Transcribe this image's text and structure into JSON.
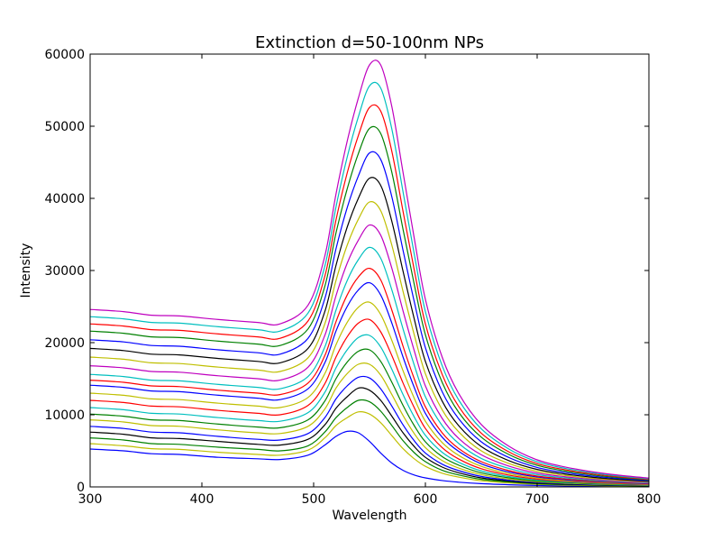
{
  "chart_data": {
    "type": "line",
    "title": "Extinction d=50-100nm NPs",
    "xlabel": "Wavelength",
    "ylabel": "Intensity",
    "xlim": [
      300,
      800
    ],
    "ylim": [
      0,
      60000
    ],
    "x_ticks": [
      300,
      400,
      500,
      600,
      700,
      800
    ],
    "y_ticks": [
      0,
      10000,
      20000,
      30000,
      40000,
      50000,
      60000
    ],
    "grid": false,
    "legend": "none",
    "x": [
      300,
      330,
      355,
      380,
      415,
      450,
      470,
      495,
      510,
      520,
      530,
      540,
      550,
      560,
      570,
      580,
      590,
      600,
      615,
      630,
      650,
      675,
      700,
      725,
      750,
      775,
      800
    ],
    "series": [
      {
        "color": "#0000ff",
        "peak_x": 530,
        "values": [
          5250,
          5000,
          4600,
          4500,
          4100,
          3900,
          3800,
          4400,
          5800,
          7000,
          7700,
          7500,
          6300,
          4700,
          3300,
          2300,
          1650,
          1250,
          880,
          650,
          450,
          300,
          200,
          140,
          100,
          70,
          50
        ]
      },
      {
        "color": "#bfbf00",
        "peak_x": 532,
        "values": [
          6000,
          5700,
          5300,
          5200,
          4800,
          4500,
          4400,
          5100,
          6800,
          8500,
          9600,
          10400,
          10100,
          8900,
          7100,
          5300,
          3900,
          2850,
          1900,
          1350,
          850,
          550,
          350,
          250,
          180,
          130,
          100
        ]
      },
      {
        "color": "#008000",
        "peak_x": 534,
        "values": [
          6800,
          6500,
          6000,
          5900,
          5500,
          5200,
          5000,
          5700,
          7600,
          9600,
          11000,
          12000,
          11800,
          10500,
          8500,
          6400,
          4750,
          3500,
          2300,
          1650,
          1050,
          680,
          440,
          320,
          230,
          170,
          130
        ]
      },
      {
        "color": "#000000",
        "peak_x": 536,
        "values": [
          7600,
          7300,
          6800,
          6700,
          6300,
          5900,
          5800,
          6600,
          8600,
          10900,
          12500,
          13700,
          13400,
          12000,
          9800,
          7500,
          5600,
          4100,
          2750,
          1950,
          1250,
          800,
          530,
          380,
          280,
          210,
          160
        ]
      },
      {
        "color": "#0000ff",
        "peak_x": 538,
        "values": [
          8400,
          8100,
          7600,
          7500,
          7000,
          6600,
          6500,
          7400,
          9600,
          12200,
          14000,
          15200,
          15100,
          13600,
          11200,
          8600,
          6400,
          4700,
          3150,
          2250,
          1450,
          930,
          620,
          450,
          330,
          250,
          190
        ]
      },
      {
        "color": "#bfbf00",
        "peak_x": 540,
        "values": [
          9300,
          9000,
          8500,
          8400,
          7900,
          7500,
          7400,
          8400,
          10800,
          13700,
          15700,
          17000,
          17000,
          15500,
          12800,
          9900,
          7400,
          5450,
          3650,
          2600,
          1700,
          1080,
          720,
          520,
          390,
          290,
          220
        ]
      },
      {
        "color": "#008000",
        "peak_x": 542,
        "values": [
          10100,
          9800,
          9300,
          9200,
          8700,
          8300,
          8200,
          9300,
          11900,
          15000,
          17300,
          18800,
          19000,
          17400,
          14500,
          11300,
          8500,
          6250,
          4200,
          3000,
          1950,
          1250,
          830,
          600,
          450,
          340,
          260
        ]
      },
      {
        "color": "#00bfbf",
        "peak_x": 544,
        "values": [
          11000,
          10700,
          10200,
          10100,
          9600,
          9200,
          9100,
          10300,
          13100,
          16500,
          19000,
          20700,
          21000,
          19400,
          16300,
          12800,
          9700,
          7150,
          4800,
          3400,
          2220,
          1420,
          950,
          690,
          520,
          390,
          300
        ]
      },
      {
        "color": "#ff0000",
        "peak_x": 546,
        "values": [
          12000,
          11700,
          11200,
          11100,
          10600,
          10200,
          10000,
          11300,
          14300,
          18000,
          20800,
          22700,
          23200,
          21500,
          18200,
          14400,
          11000,
          8100,
          5450,
          3850,
          2520,
          1620,
          1080,
          790,
          590,
          450,
          340
        ]
      },
      {
        "color": "#bfbf00",
        "peak_x": 548,
        "values": [
          13000,
          12700,
          12200,
          12100,
          11600,
          11200,
          11000,
          12400,
          15700,
          19700,
          22800,
          24900,
          25600,
          23900,
          20300,
          16100,
          12300,
          9100,
          6150,
          4350,
          2850,
          1830,
          1220,
          890,
          670,
          510,
          390
        ]
      },
      {
        "color": "#0000ff",
        "peak_x": 550,
        "values": [
          14100,
          13800,
          13300,
          13200,
          12700,
          12300,
          12100,
          13600,
          17200,
          21600,
          25000,
          27300,
          28300,
          26600,
          22700,
          18000,
          13800,
          10200,
          6900,
          4900,
          3200,
          2050,
          1370,
          1000,
          750,
          570,
          440
        ]
      },
      {
        "color": "#ff0000",
        "peak_x": 552,
        "values": [
          14800,
          14500,
          14000,
          13900,
          13400,
          13000,
          12800,
          14400,
          18200,
          22900,
          26600,
          29100,
          30300,
          28700,
          24500,
          19500,
          15000,
          11100,
          7500,
          5300,
          3500,
          2250,
          1500,
          1100,
          820,
          630,
          480
        ]
      },
      {
        "color": "#00bfbf",
        "peak_x": 554,
        "values": [
          15600,
          15300,
          14800,
          14700,
          14200,
          13800,
          13600,
          15300,
          19400,
          24500,
          28600,
          31500,
          33200,
          31700,
          27300,
          21900,
          16900,
          12500,
          8500,
          6000,
          3950,
          2550,
          1700,
          1250,
          940,
          720,
          550
        ]
      },
      {
        "color": "#bf00bf",
        "peak_x": 556,
        "values": [
          16800,
          16500,
          16000,
          15900,
          15400,
          15000,
          14800,
          16600,
          21000,
          26500,
          31000,
          34200,
          36300,
          34900,
          30300,
          24400,
          18900,
          14000,
          9500,
          6700,
          4450,
          2870,
          1920,
          1410,
          1060,
          810,
          620
        ]
      },
      {
        "color": "#bfbf00",
        "peak_x": 558,
        "values": [
          18000,
          17700,
          17200,
          17100,
          16600,
          16200,
          16000,
          17900,
          22600,
          28600,
          33500,
          37100,
          39500,
          38300,
          33500,
          27100,
          21100,
          15700,
          10700,
          7600,
          5000,
          3230,
          2160,
          1590,
          1190,
          910,
          700
        ]
      },
      {
        "color": "#000000",
        "peak_x": 560,
        "values": [
          19200,
          18900,
          18400,
          18300,
          17800,
          17400,
          17200,
          19200,
          24300,
          30700,
          36000,
          40000,
          42800,
          41800,
          36800,
          29900,
          23300,
          17400,
          11900,
          8450,
          5600,
          3620,
          2420,
          1780,
          1330,
          1020,
          780
        ]
      },
      {
        "color": "#0000ff",
        "peak_x": 562,
        "values": [
          20400,
          20100,
          19600,
          19500,
          19000,
          18600,
          18400,
          20600,
          26100,
          33000,
          38700,
          43100,
          46300,
          45400,
          40200,
          32800,
          25700,
          19300,
          13200,
          9400,
          6250,
          4050,
          2700,
          1990,
          1490,
          1140,
          870
        ]
      },
      {
        "color": "#008000",
        "peak_x": 564,
        "values": [
          21600,
          21300,
          20800,
          20700,
          20200,
          19800,
          19600,
          21900,
          27800,
          35200,
          41300,
          46200,
          49700,
          49000,
          43600,
          35700,
          28100,
          21100,
          14500,
          10300,
          6900,
          4470,
          2990,
          2200,
          1650,
          1260,
          970
        ]
      },
      {
        "color": "#ff0000",
        "peak_x": 566,
        "values": [
          22600,
          22300,
          21800,
          21700,
          21200,
          20800,
          20600,
          23000,
          29200,
          37000,
          43500,
          48700,
          52600,
          52100,
          46500,
          38200,
          30100,
          22600,
          15600,
          11100,
          7450,
          4830,
          3230,
          2380,
          1790,
          1370,
          1050
        ]
      },
      {
        "color": "#00bfbf",
        "peak_x": 568,
        "values": [
          23600,
          23300,
          22800,
          22700,
          22200,
          21800,
          21600,
          24100,
          30600,
          38800,
          45700,
          51300,
          55600,
          55300,
          49600,
          40900,
          32300,
          24300,
          16800,
          12000,
          8050,
          5220,
          3490,
          2570,
          1930,
          1480,
          1130
        ]
      },
      {
        "color": "#bf00bf",
        "peak_x": 570,
        "values": [
          24600,
          24300,
          23800,
          23700,
          23200,
          22800,
          22600,
          25200,
          32000,
          40600,
          47900,
          53900,
          58500,
          58500,
          52700,
          43600,
          34500,
          26000,
          18000,
          12900,
          8650,
          5610,
          3750,
          2760,
          2080,
          1590,
          1220
        ]
      }
    ]
  }
}
